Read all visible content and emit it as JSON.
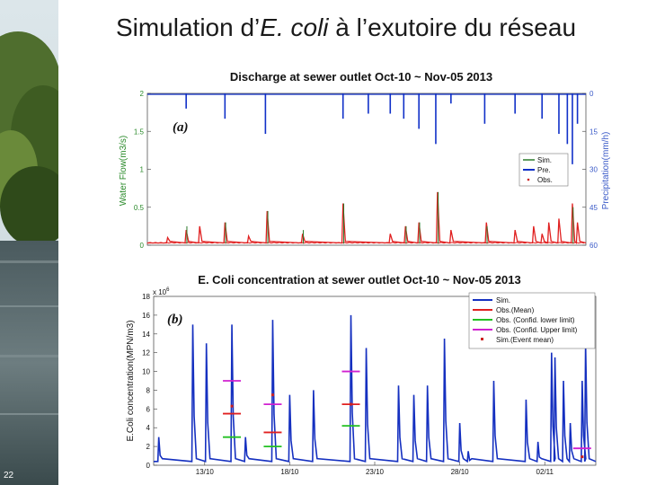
{
  "slide": {
    "title_before": "Simulation d’",
    "title_italic": "E. coli",
    "title_after": " à l’exutoire du réseau",
    "number": "22"
  },
  "colors": {
    "sim": "#e02020",
    "pre": "#1030c8",
    "obs_a": "#2a7a2a",
    "sim_b": "#1530c0",
    "obs_mean": "#e02020",
    "lower": "#22c022",
    "upper": "#d020d0",
    "event": "#cc2222",
    "left_axis": "#2a8a2a",
    "right_axis": "#3a5ac8"
  },
  "chart_data": [
    {
      "type": "line",
      "title": "Discharge at sewer outlet Oct-10 ~ Nov-05 2013",
      "panel_label": "(a)",
      "ylabel": "Water Flow(m3/s)",
      "y2label": "Precipitation(mm/h)",
      "ylim": [
        0,
        2
      ],
      "y2lim": [
        60,
        0
      ],
      "yticks": [
        "0",
        "0.5",
        "1",
        "1.5",
        "2"
      ],
      "y2ticks": [
        "60",
        "45",
        "30",
        "15",
        "0"
      ],
      "legend": [
        "Sim.",
        "Pre.",
        "Obs."
      ],
      "legend_placement": "right",
      "series": [
        {
          "name": "Sim.",
          "peaks": [
            [
              11.2,
              0.1
            ],
            [
              12.3,
              0.2
            ],
            [
              13.1,
              0.25
            ],
            [
              14.6,
              0.3
            ],
            [
              16.0,
              0.12
            ],
            [
              17.1,
              0.45
            ],
            [
              19.2,
              0.15
            ],
            [
              21.6,
              0.55
            ],
            [
              24.4,
              0.15
            ],
            [
              25.3,
              0.25
            ],
            [
              26.1,
              0.3
            ],
            [
              27.2,
              0.7
            ],
            [
              28.0,
              0.2
            ],
            [
              30.1,
              0.3
            ],
            [
              31.8,
              0.2
            ],
            [
              32.9,
              0.25
            ],
            [
              33.4,
              0.15
            ],
            [
              33.8,
              0.3
            ],
            [
              34.4,
              0.35
            ],
            [
              35.2,
              0.55
            ],
            [
              35.5,
              0.3
            ]
          ]
        },
        {
          "name": "Pre.",
          "spikes": [
            [
              12.3,
              6
            ],
            [
              14.6,
              10
            ],
            [
              17.0,
              16
            ],
            [
              21.6,
              10
            ],
            [
              23.1,
              8
            ],
            [
              24.4,
              8
            ],
            [
              25.2,
              10
            ],
            [
              26.1,
              14
            ],
            [
              27.1,
              20
            ],
            [
              28.0,
              4
            ],
            [
              30.0,
              12
            ],
            [
              31.8,
              8
            ],
            [
              33.4,
              10
            ],
            [
              34.4,
              16
            ],
            [
              34.9,
              20
            ],
            [
              35.2,
              28
            ],
            [
              35.5,
              12
            ]
          ]
        },
        {
          "name": "Obs.",
          "points": [
            [
              12.3,
              0.25
            ],
            [
              14.6,
              0.3
            ],
            [
              17.1,
              0.45
            ],
            [
              19.2,
              0.2
            ],
            [
              21.6,
              0.55
            ],
            [
              25.3,
              0.25
            ],
            [
              26.1,
              0.3
            ],
            [
              27.2,
              0.7
            ],
            [
              30.1,
              0.25
            ],
            [
              35.2,
              0.5
            ]
          ]
        }
      ]
    },
    {
      "type": "line",
      "title": "E. Coli concentration at sewer outlet Oct-10 ~ Nov-05 2013",
      "panel_label": "(b)",
      "ylabel": "E.Coli concentration(MPN/m3)",
      "y_exponent_label": "x 10",
      "y_exponent": "6",
      "ylim": [
        0,
        18
      ],
      "yticks": [
        "0",
        "2",
        "4",
        "6",
        "8",
        "10",
        "12",
        "14",
        "16",
        "18"
      ],
      "xlim": [
        10,
        36
      ],
      "xticks": [
        {
          "x": 13,
          "label": "13/10"
        },
        {
          "x": 18,
          "label": "18/10"
        },
        {
          "x": 23,
          "label": "23/10"
        },
        {
          "x": 28,
          "label": "28/10"
        },
        {
          "x": 33,
          "label": "02/11"
        }
      ],
      "legend": [
        "Sim.",
        "Obs.(Mean)",
        "Obs. (Confid. lower limit)",
        "Obs. (Confid. Upper limit)",
        "Sim.(Event mean)"
      ],
      "legend_placement": "top-right",
      "series": [
        {
          "name": "Sim.",
          "peaks": [
            [
              10.3,
              3
            ],
            [
              12.3,
              15
            ],
            [
              13.1,
              13
            ],
            [
              14.6,
              15
            ],
            [
              15.4,
              3
            ],
            [
              17.0,
              15.5
            ],
            [
              18.0,
              7.5
            ],
            [
              19.4,
              8
            ],
            [
              21.6,
              16
            ],
            [
              22.5,
              12.5
            ],
            [
              24.4,
              8.5
            ],
            [
              25.3,
              7.5
            ],
            [
              26.1,
              8.5
            ],
            [
              27.1,
              13.5
            ],
            [
              28.0,
              4.5
            ],
            [
              28.5,
              1.5
            ],
            [
              30.0,
              9
            ],
            [
              31.9,
              7
            ],
            [
              32.6,
              2.5
            ],
            [
              33.4,
              12
            ],
            [
              33.6,
              11.5
            ],
            [
              34.1,
              9
            ],
            [
              34.5,
              4.5
            ],
            [
              35.2,
              9
            ],
            [
              35.4,
              13
            ]
          ]
        },
        {
          "name": "Obs.(Mean)",
          "values": [
            [
              14.6,
              5.5
            ],
            [
              17.0,
              3.5
            ],
            [
              21.6,
              6.5
            ]
          ]
        },
        {
          "name": "Obs. (Confid. lower limit)",
          "values": [
            [
              14.6,
              3.0
            ],
            [
              17.0,
              2.0
            ],
            [
              21.6,
              4.2
            ]
          ]
        },
        {
          "name": "Obs. (Confid. Upper limit)",
          "values": [
            [
              14.6,
              9.0
            ],
            [
              17.0,
              6.5
            ],
            [
              21.6,
              10.0
            ],
            [
              35.2,
              1.8
            ]
          ]
        },
        {
          "name": "Sim.(Event mean)",
          "values": [
            [
              14.6,
              6.3
            ],
            [
              17.0,
              7.5
            ],
            [
              21.6,
              6.5
            ],
            [
              35.2,
              0.9
            ]
          ]
        }
      ]
    }
  ]
}
